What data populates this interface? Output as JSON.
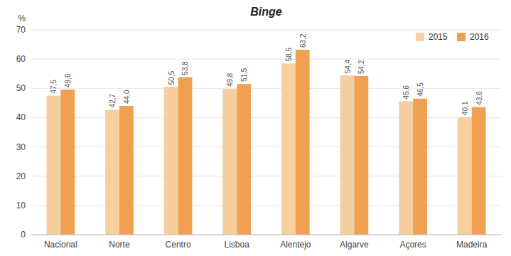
{
  "chart_data": {
    "type": "bar",
    "title": "Binge",
    "ylabel": "%",
    "categories": [
      "Nacional",
      "Norte",
      "Centro",
      "Lisboa",
      "Alentejo",
      "Algarve",
      "Açores",
      "Madeira"
    ],
    "series": [
      {
        "name": "2015",
        "color": "#f5cfa0",
        "values": [
          47.5,
          42.7,
          50.5,
          49.8,
          58.5,
          54.4,
          45.6,
          40.1
        ],
        "value_labels": [
          "47,5",
          "42,7",
          "50,5",
          "49,8",
          "58,5",
          "54,4",
          "45,6",
          "40,1"
        ]
      },
      {
        "name": "2016",
        "color": "#f0a050",
        "values": [
          49.6,
          44.0,
          53.8,
          51.5,
          63.2,
          54.2,
          46.5,
          43.6
        ],
        "value_labels": [
          "49,6",
          "44,0",
          "53,8",
          "51,5",
          "63,2",
          "54,2",
          "46,5",
          "43,6"
        ]
      }
    ],
    "ylim": [
      0,
      70
    ],
    "yticks": [
      0,
      10,
      20,
      30,
      40,
      50,
      60,
      70
    ],
    "grid": true,
    "legend": "upper right",
    "data_labels": true
  }
}
